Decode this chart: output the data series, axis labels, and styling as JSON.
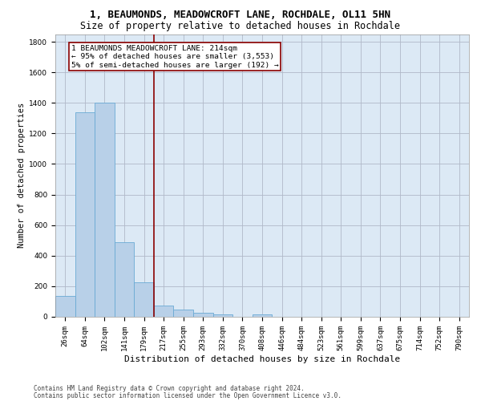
{
  "title": "1, BEAUMONDS, MEADOWCROFT LANE, ROCHDALE, OL11 5HN",
  "subtitle": "Size of property relative to detached houses in Rochdale",
  "xlabel": "Distribution of detached houses by size in Rochdale",
  "ylabel": "Number of detached properties",
  "footer_line1": "Contains HM Land Registry data © Crown copyright and database right 2024.",
  "footer_line2": "Contains public sector information licensed under the Open Government Licence v3.0.",
  "bar_labels": [
    "26sqm",
    "64sqm",
    "102sqm",
    "141sqm",
    "179sqm",
    "217sqm",
    "255sqm",
    "293sqm",
    "332sqm",
    "370sqm",
    "408sqm",
    "446sqm",
    "484sqm",
    "523sqm",
    "561sqm",
    "599sqm",
    "637sqm",
    "675sqm",
    "714sqm",
    "752sqm",
    "790sqm"
  ],
  "bar_values": [
    135,
    1340,
    1400,
    490,
    225,
    75,
    45,
    28,
    15,
    0,
    18,
    0,
    0,
    0,
    0,
    0,
    0,
    0,
    0,
    0,
    0
  ],
  "bar_color": "#b8d0e8",
  "bar_edge_color": "#6aaad4",
  "vline_color": "#8b0000",
  "vline_index": 5,
  "annotation_line1": "1 BEAUMONDS MEADOWCROFT LANE: 214sqm",
  "annotation_line2": "← 95% of detached houses are smaller (3,553)",
  "annotation_line3": "5% of semi-detached houses are larger (192) →",
  "annotation_box_color": "#8b0000",
  "ylim": [
    0,
    1850
  ],
  "yticks": [
    0,
    200,
    400,
    600,
    800,
    1000,
    1200,
    1400,
    1600,
    1800
  ],
  "background_color": "#ffffff",
  "axes_bg_color": "#dce9f5",
  "grid_color": "#b0b8c8",
  "title_fontsize": 9,
  "subtitle_fontsize": 8.5,
  "ylabel_fontsize": 7.5,
  "xlabel_fontsize": 8,
  "tick_fontsize": 6.5,
  "footer_fontsize": 5.5,
  "ann_fontsize": 6.8
}
